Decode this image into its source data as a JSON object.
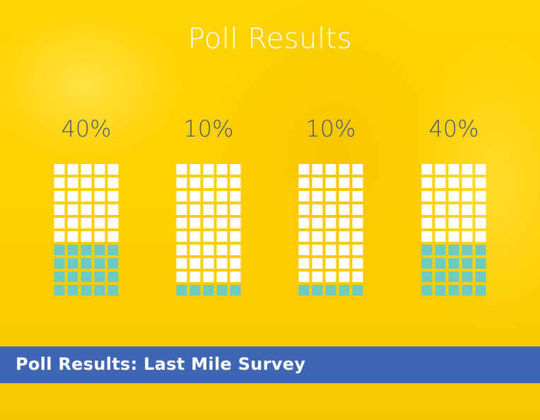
{
  "title": "Poll Results",
  "banner": {
    "text": "Poll Results: Last Mile Survey"
  },
  "colors": {
    "background": "#ffd400",
    "empty_cell": "#ffffff",
    "filled_cell": "#6ccbc0",
    "percent_text": "#4d5a6a",
    "banner": "#3f66b3"
  },
  "chart_data": {
    "type": "bar",
    "style": "waffle",
    "grid": {
      "columns": 5,
      "rows": 10
    },
    "categories": [],
    "values": [
      40,
      10,
      10,
      40
    ],
    "labels": [
      "40%",
      "10%",
      "10%",
      "40%"
    ],
    "unit": "%"
  }
}
